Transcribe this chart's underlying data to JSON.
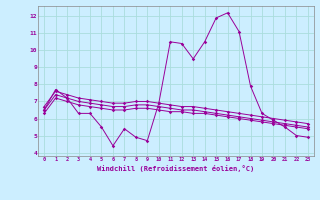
{
  "x": [
    0,
    1,
    2,
    3,
    4,
    5,
    6,
    7,
    8,
    9,
    10,
    11,
    12,
    13,
    14,
    15,
    16,
    17,
    18,
    19,
    20,
    21,
    22,
    23
  ],
  "line1": [
    6.5,
    7.7,
    7.2,
    6.3,
    6.3,
    5.5,
    4.4,
    5.4,
    4.9,
    4.7,
    6.9,
    10.5,
    10.4,
    9.5,
    10.5,
    11.9,
    12.2,
    11.1,
    7.9,
    6.3,
    5.9,
    5.5,
    5.0,
    4.9
  ],
  "line2": [
    6.7,
    7.6,
    7.4,
    7.2,
    7.1,
    7.0,
    6.9,
    6.9,
    7.0,
    7.0,
    6.9,
    6.8,
    6.7,
    6.7,
    6.6,
    6.5,
    6.4,
    6.3,
    6.2,
    6.1,
    6.0,
    5.9,
    5.8,
    5.7
  ],
  "line3": [
    6.5,
    7.4,
    7.2,
    7.0,
    6.9,
    6.8,
    6.7,
    6.7,
    6.8,
    6.8,
    6.7,
    6.6,
    6.5,
    6.5,
    6.4,
    6.3,
    6.2,
    6.1,
    6.0,
    5.9,
    5.8,
    5.7,
    5.6,
    5.5
  ],
  "line4": [
    6.3,
    7.2,
    7.0,
    6.8,
    6.7,
    6.6,
    6.5,
    6.5,
    6.6,
    6.6,
    6.5,
    6.4,
    6.4,
    6.3,
    6.3,
    6.2,
    6.1,
    6.0,
    5.9,
    5.8,
    5.7,
    5.6,
    5.5,
    5.4
  ],
  "color": "#990099",
  "bg_color": "#cceeff",
  "grid_color": "#aadddd",
  "xlabel": "Windchill (Refroidissement éolien,°C)",
  "ylim": [
    3.8,
    12.6
  ],
  "xlim": [
    -0.5,
    23.5
  ],
  "yticks": [
    4,
    5,
    6,
    7,
    8,
    9,
    10,
    11,
    12
  ],
  "xticks": [
    0,
    1,
    2,
    3,
    4,
    5,
    6,
    7,
    8,
    9,
    10,
    11,
    12,
    13,
    14,
    15,
    16,
    17,
    18,
    19,
    20,
    21,
    22,
    23
  ]
}
